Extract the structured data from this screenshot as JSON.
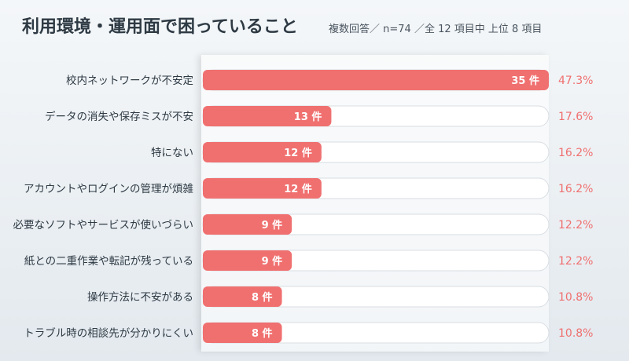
{
  "header": {
    "title": "利用環境・運用面で困っていること",
    "subtitle": "複数回答／ n=74 ／全 12 項目中 上位 8 項目"
  },
  "colors": {
    "bar_fill": "#f07070",
    "bar_track": "#ffffff",
    "percent_text": "#f07070"
  },
  "chart_data": {
    "type": "bar",
    "orientation": "horizontal",
    "title": "利用環境・運用面で困っていること",
    "subtitle": "複数回答／ n=74 ／全 12 項目中 上位 8 項目",
    "n": 74,
    "xlim": [
      0,
      35
    ],
    "unit": "件",
    "categories": [
      "校内ネットワークが不安定",
      "データの消失や保存ミスが不安",
      "特にない",
      "アカウントやログインの管理が煩雑",
      "必要なソフトやサービスが使いづらい",
      "紙との二重作業や転記が残っている",
      "操作方法に不安がある",
      "トラブル時の相談先が分かりにくい"
    ],
    "values": [
      35,
      13,
      12,
      12,
      9,
      9,
      8,
      8
    ],
    "value_labels": [
      "35 件",
      "13 件",
      "12 件",
      "12 件",
      "9 件",
      "9 件",
      "8 件",
      "8 件"
    ],
    "percent_labels": [
      "47.3%",
      "17.6%",
      "16.2%",
      "16.2%",
      "12.2%",
      "12.2%",
      "10.8%",
      "10.8%"
    ]
  }
}
